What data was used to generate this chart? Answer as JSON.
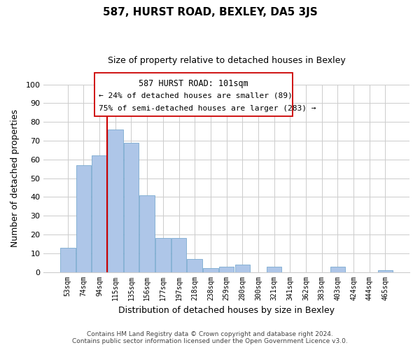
{
  "title": "587, HURST ROAD, BEXLEY, DA5 3JS",
  "subtitle": "Size of property relative to detached houses in Bexley",
  "xlabel": "Distribution of detached houses by size in Bexley",
  "ylabel": "Number of detached properties",
  "footer_line1": "Contains HM Land Registry data © Crown copyright and database right 2024.",
  "footer_line2": "Contains public sector information licensed under the Open Government Licence v3.0.",
  "bin_labels": [
    "53sqm",
    "74sqm",
    "94sqm",
    "115sqm",
    "135sqm",
    "156sqm",
    "177sqm",
    "197sqm",
    "218sqm",
    "238sqm",
    "259sqm",
    "280sqm",
    "300sqm",
    "321sqm",
    "341sqm",
    "362sqm",
    "383sqm",
    "403sqm",
    "424sqm",
    "444sqm",
    "465sqm"
  ],
  "bar_heights": [
    13,
    57,
    62,
    76,
    69,
    41,
    18,
    18,
    7,
    2,
    3,
    4,
    0,
    3,
    0,
    0,
    0,
    3,
    0,
    0,
    1
  ],
  "bar_color": "#aec6e8",
  "bar_edge_color": "#7aaad0",
  "property_line_bin_index": 2.5,
  "property_line_color": "#cc0000",
  "annotation_title": "587 HURST ROAD: 101sqm",
  "annotation_line1": "← 24% of detached houses are smaller (89)",
  "annotation_line2": "75% of semi-detached houses are larger (283) →",
  "ylim": [
    0,
    100
  ],
  "yticks": [
    0,
    10,
    20,
    30,
    40,
    50,
    60,
    70,
    80,
    90,
    100
  ],
  "bg_color": "#ffffff",
  "grid_color": "#cccccc"
}
